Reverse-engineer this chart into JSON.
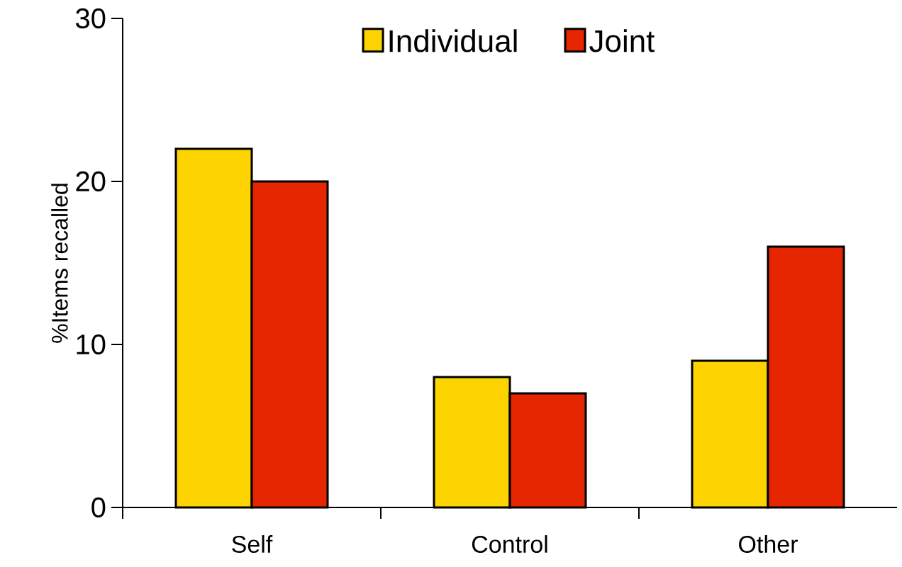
{
  "chart_data": {
    "type": "bar",
    "ylabel": "%Items recalled",
    "categories": [
      "Self",
      "Control",
      "Other"
    ],
    "series": [
      {
        "name": "Individual",
        "color": "#fed400",
        "values": [
          22,
          8,
          9
        ]
      },
      {
        "name": "Joint",
        "color": "#e62600",
        "values": [
          20,
          7,
          16
        ]
      }
    ],
    "ylim": [
      0,
      30
    ],
    "yticks": [
      0,
      10,
      20,
      30
    ],
    "grid": false,
    "legend": "top"
  }
}
